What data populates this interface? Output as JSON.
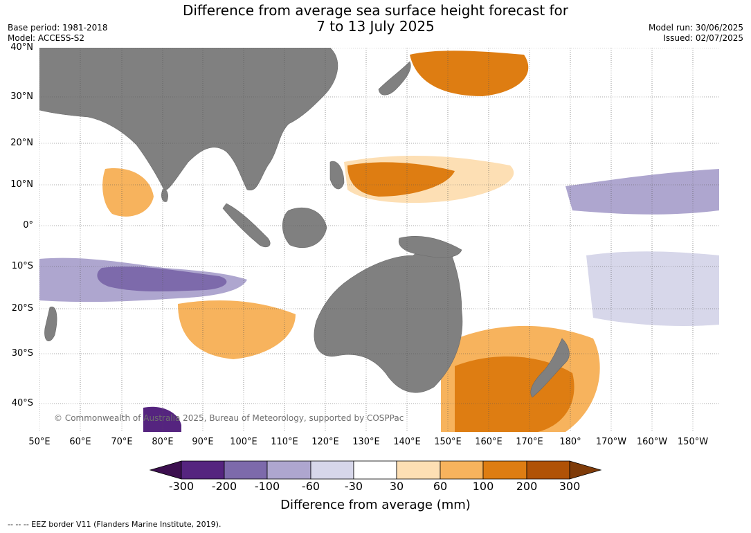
{
  "title_line1": "Difference from average sea surface height forecast for",
  "title_line2": "7 to 13 July 2025",
  "base_period": "Base period: 1981-2018",
  "model": "Model: ACCESS-S2",
  "model_run": "Model run: 30/06/2025",
  "issued": "Issued: 02/07/2025",
  "copyright": "© Commonwealth of Australia 2025, Bureau of Meteorology, supported by COSPPac",
  "footer": "--  --  -- EEZ border V11 (Flanders Marine Institute, 2019).",
  "lat_labels": [
    "40°N",
    "30°N",
    "20°N",
    "10°N",
    "0°",
    "10°S",
    "20°S",
    "30°S",
    "40°S"
  ],
  "lon_labels": [
    "50°E",
    "60°E",
    "70°E",
    "80°E",
    "90°E",
    "100°E",
    "110°E",
    "120°E",
    "130°E",
    "140°E",
    "150°E",
    "160°E",
    "170°E",
    "180°",
    "170°W",
    "160°W",
    "150°W"
  ],
  "colorbar": {
    "title": "Difference from average (mm)",
    "tick_labels": [
      "-300",
      "-200",
      "-100",
      "-60",
      "-30",
      "30",
      "60",
      "100",
      "200",
      "300"
    ],
    "colors": [
      "#3c0f4f",
      "#55247f",
      "#7d6aab",
      "#aea6cf",
      "#d7d7ea",
      "#ffffff",
      "#fddfb4",
      "#f7b35d",
      "#de7d12",
      "#b05206",
      "#7f3b09"
    ]
  },
  "map_colors": {
    "land": "#808080",
    "grid": "#555555"
  }
}
